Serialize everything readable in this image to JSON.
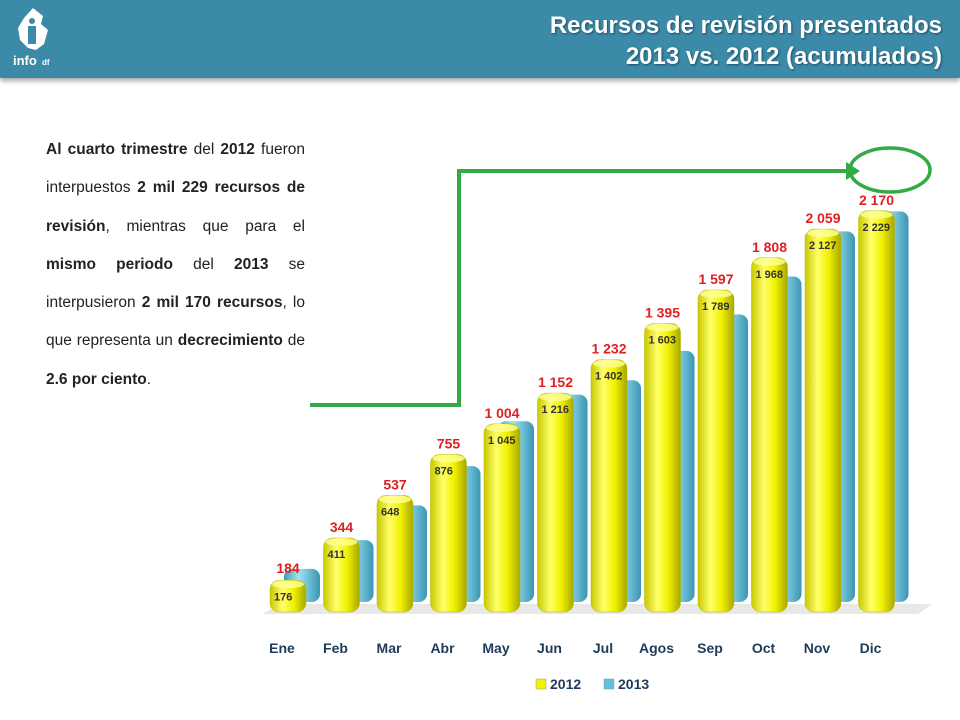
{
  "header": {
    "logo_text": "info",
    "logo_sub": "df",
    "title_line1": "Recursos de revisión presentados",
    "title_line2": "2013 vs. 2012 (acumulados)"
  },
  "paragraph": [
    {
      "t": "Al cuarto trimestre",
      "b": true
    },
    {
      "t": " del ",
      "b": false
    },
    {
      "t": "2012",
      "b": true
    },
    {
      "t": " fueron interpuestos ",
      "b": false
    },
    {
      "t": "2 mil 229 recursos de revisión",
      "b": true
    },
    {
      "t": ", mientras que para el ",
      "b": false
    },
    {
      "t": "mismo periodo",
      "b": true
    },
    {
      "t": " del ",
      "b": false
    },
    {
      "t": "2013",
      "b": true
    },
    {
      "t": " se interpusieron ",
      "b": false
    },
    {
      "t": "2 mil 170 recursos",
      "b": true
    },
    {
      "t": ", lo que representa un ",
      "b": false
    },
    {
      "t": "decrecimiento",
      "b": true
    },
    {
      "t": " de ",
      "b": false
    },
    {
      "t": "2.6 por ciento",
      "b": true
    },
    {
      "t": ".",
      "b": false
    }
  ],
  "colors": {
    "header": "#3a8aa8",
    "series_2012": "#f2f200",
    "series_2013": "#5ec1dd",
    "highlight": "#33aa44",
    "label_2013": "#e02020"
  },
  "chart_data": {
    "type": "bar",
    "categories": [
      "Ene",
      "Feb",
      "Mar",
      "Abr",
      "May",
      "Jun",
      "Jul",
      "Agos",
      "Sep",
      "Oct",
      "Nov",
      "Dic"
    ],
    "series": [
      {
        "name": "2012",
        "values": [
          176,
          411,
          648,
          876,
          1045,
          1216,
          1402,
          1603,
          1789,
          1968,
          2127,
          2229
        ],
        "labels": [
          "176",
          "411",
          "648",
          "876",
          "1 045",
          "1 216",
          "1 402",
          "1 603",
          "1 789",
          "1 968",
          "2 127",
          "2 229"
        ]
      },
      {
        "name": "2013",
        "values": [
          184,
          344,
          537,
          755,
          1004,
          1152,
          1232,
          1395,
          1597,
          1808,
          2059,
          2170
        ],
        "labels": [
          "184",
          "344",
          "537",
          "755",
          "1 004",
          "1 152",
          "1 232",
          "1 395",
          "1 597",
          "1 808",
          "2 059",
          "2 170"
        ]
      }
    ],
    "legend": [
      "2012",
      "2013"
    ],
    "legend_position": "bottom",
    "highlighted": "2 170",
    "grid": false
  }
}
